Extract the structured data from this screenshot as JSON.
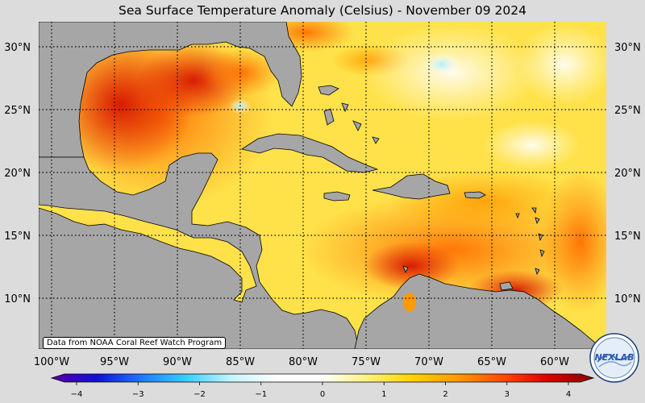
{
  "title": "Sea Surface Temperature Anomaly (Celsius) - November 09 2024",
  "credit": "Data from NOAA Coral Reef Watch Program",
  "logo_text": "NEXLAB",
  "map": {
    "lat_labels": [
      "30°N",
      "25°N",
      "20°N",
      "15°N",
      "10°N"
    ],
    "lon_labels": [
      "100°W",
      "95°W",
      "90°W",
      "85°W",
      "80°W",
      "75°W",
      "70°W",
      "65°W",
      "60°W"
    ],
    "land_color": "#a6a6a6",
    "coast_color": "#000000"
  },
  "colorbar": {
    "ticks": [
      "−4",
      "−3",
      "−2",
      "−1",
      "0",
      "1",
      "2",
      "3",
      "4"
    ],
    "min": -4,
    "max": 4,
    "colors": [
      "#5a00a8",
      "#1010d0",
      "#1e7bff",
      "#3ad0ff",
      "#c8f5ff",
      "#ffffff",
      "#ffffff",
      "#fff27a",
      "#ffd200",
      "#ff9800",
      "#ff4a00",
      "#d80000",
      "#8a0000"
    ]
  }
}
